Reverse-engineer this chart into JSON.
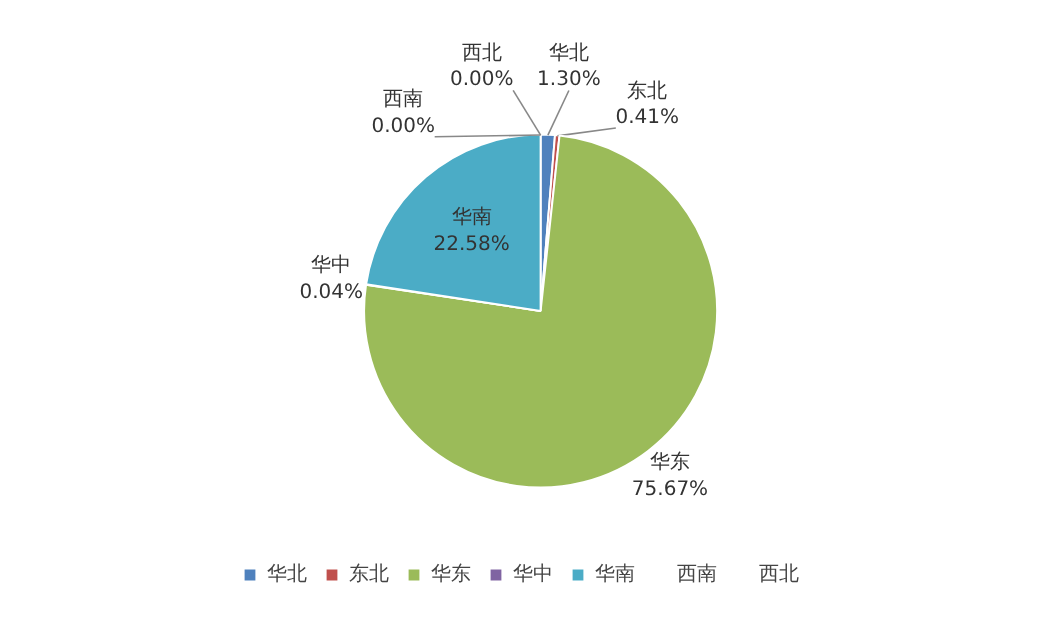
{
  "chart_data": {
    "type": "pie",
    "categories": [
      "华北",
      "东北",
      "华东",
      "华中",
      "华南",
      "西南",
      "西北"
    ],
    "values": [
      1.3,
      0.41,
      75.67,
      0.04,
      22.58,
      0.0,
      0.0
    ],
    "colors": [
      "#4f81bd",
      "#c0504d",
      "#9bbb59",
      "#8064a2",
      "#4bacc6",
      "#f79646",
      "#a6b7db"
    ],
    "value_labels": [
      "1.30%",
      "0.41%",
      "75.67%",
      "0.04%",
      "22.58%",
      "0.00%",
      "0.00%"
    ],
    "legend": "bottom"
  }
}
